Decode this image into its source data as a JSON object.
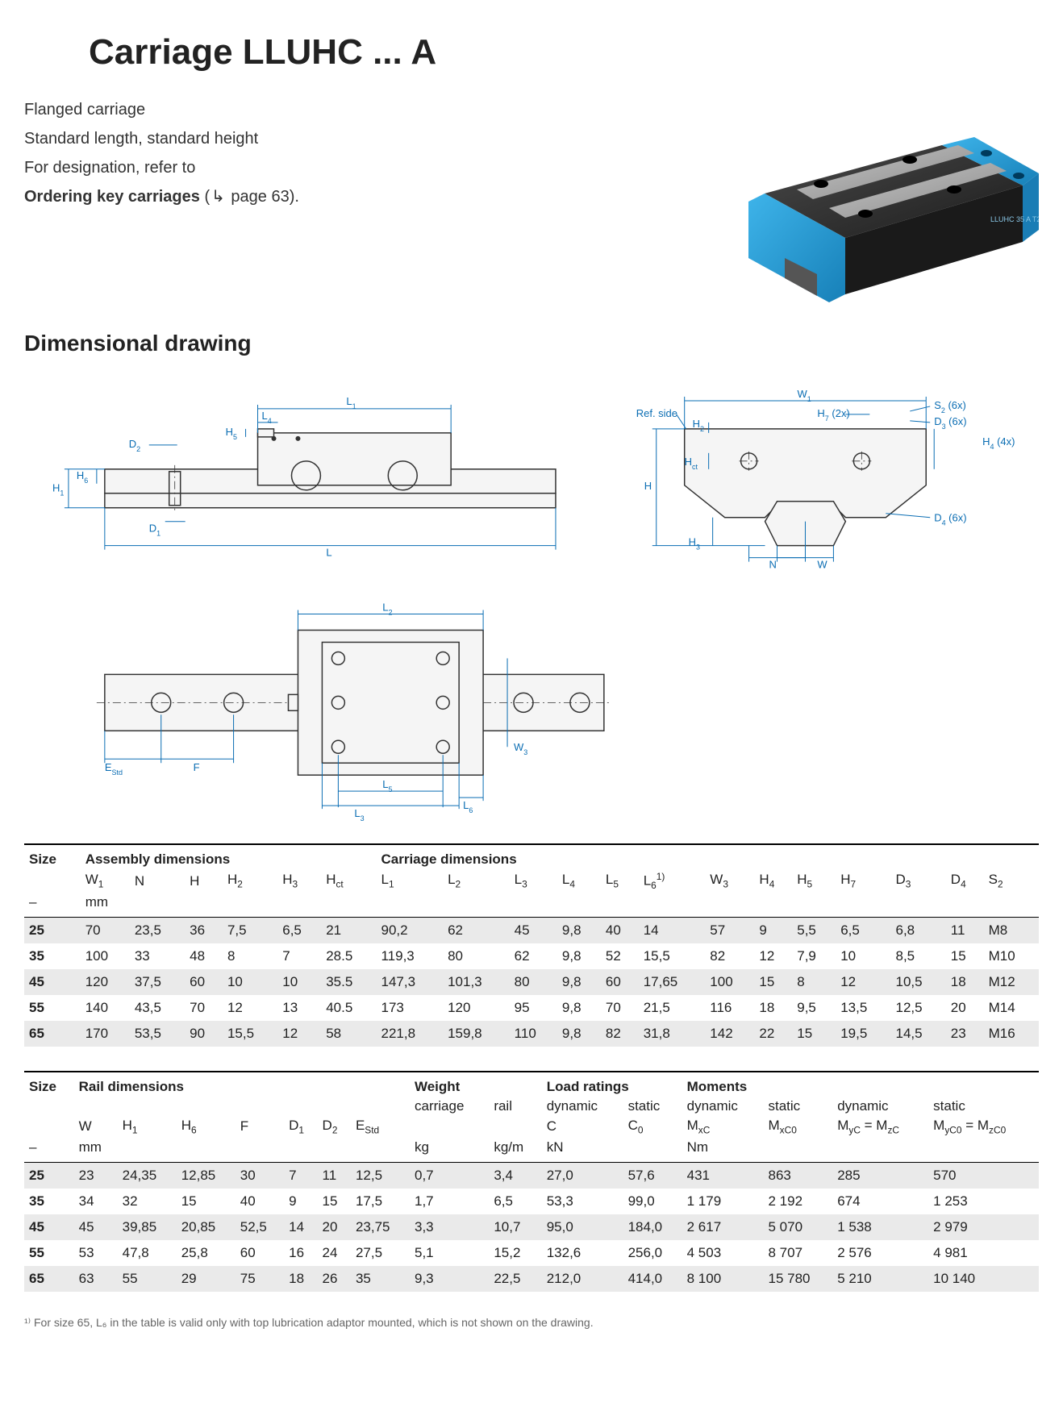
{
  "title": "Carriage LLUHC ... A",
  "intro": {
    "line1": "Flanged carriage",
    "line2": "Standard length, standard height",
    "line3_prefix": "For designation, refer to",
    "line4_bold": "Ordering key carriages",
    "line4_suffix": " page 63)."
  },
  "product_label": "LLUHC 35 A T2",
  "colors": {
    "carriage_blue": "#2a9ed8",
    "carriage_dark": "#2b2b2b",
    "carriage_light": "#9a9a9a",
    "dim_blue": "#0a6db3",
    "line_dark": "#333333",
    "row_grey": "#eaeaea",
    "row_white": "#ffffff"
  },
  "section_drawing": "Dimensional drawing",
  "table1": {
    "size_header": "Size",
    "group_assembly": "Assembly dimensions",
    "group_carriage": "Carriage dimensions",
    "symbols": [
      "W₁",
      "N",
      "H",
      "H₂",
      "H₃",
      "H_ct",
      "L₁",
      "L₂",
      "L₃",
      "L₄",
      "L₅",
      "L₆¹⁾",
      "W₃",
      "H₄",
      "H₅",
      "H₇",
      "D₃",
      "D₄",
      "S₂"
    ],
    "unit_w1": "mm",
    "dash": "–",
    "rows": [
      {
        "size": "25",
        "vals": [
          "70",
          "23,5",
          "36",
          "7,5",
          "6,5",
          "21",
          "90,2",
          "62",
          "45",
          "9,8",
          "40",
          "14",
          "57",
          "9",
          "5,5",
          "6,5",
          "6,8",
          "11",
          "M8"
        ],
        "grey": true
      },
      {
        "size": "35",
        "vals": [
          "100",
          "33",
          "48",
          "8",
          "7",
          "28.5",
          "119,3",
          "80",
          "62",
          "9,8",
          "52",
          "15,5",
          "82",
          "12",
          "7,9",
          "10",
          "8,5",
          "15",
          "M10"
        ],
        "grey": false
      },
      {
        "size": "45",
        "vals": [
          "120",
          "37,5",
          "60",
          "10",
          "10",
          "35.5",
          "147,3",
          "101,3",
          "80",
          "9,8",
          "60",
          "17,65",
          "100",
          "15",
          "8",
          "12",
          "10,5",
          "18",
          "M12"
        ],
        "grey": true
      },
      {
        "size": "55",
        "vals": [
          "140",
          "43,5",
          "70",
          "12",
          "13",
          "40.5",
          "173",
          "120",
          "95",
          "9,8",
          "70",
          "21,5",
          "116",
          "18",
          "9,5",
          "13,5",
          "12,5",
          "20",
          "M14"
        ],
        "grey": false
      },
      {
        "size": "65",
        "vals": [
          "170",
          "53,5",
          "90",
          "15,5",
          "12",
          "58",
          "221,8",
          "159,8",
          "110",
          "9,8",
          "82",
          "31,8",
          "142",
          "22",
          "15",
          "19,5",
          "14,5",
          "23",
          "M16"
        ],
        "grey": true
      }
    ]
  },
  "table2": {
    "size_header": "Size",
    "group_rail": "Rail dimensions",
    "group_weight": "Weight",
    "group_load": "Load ratings",
    "group_moments": "Moments",
    "sub_carriage": "carriage",
    "sub_rail": "rail",
    "sub_dynamic": "dynamic",
    "sub_static": "static",
    "symbols_rail": [
      "W",
      "H₁",
      "H₆",
      "F",
      "D₁",
      "D₂",
      "E_Std"
    ],
    "sym_C": "C",
    "sym_C0": "C₀",
    "sym_MxC": "M_xC",
    "sym_MxC0": "M_xC₀",
    "sym_Myc": "M_yC = M_zC",
    "sym_Myc0": "M_yC₀ = M_zC₀",
    "unit_mm": "mm",
    "unit_kg": "kg",
    "unit_kgm": "kg/m",
    "unit_kN": "kN",
    "unit_Nm": "Nm",
    "dash": "–",
    "rows": [
      {
        "size": "25",
        "vals": [
          "23",
          "24,35",
          "12,85",
          "30",
          "7",
          "11",
          "12,5",
          "0,7",
          "3,4",
          "27,0",
          "57,6",
          "431",
          "863",
          "285",
          "570"
        ],
        "grey": true
      },
      {
        "size": "35",
        "vals": [
          "34",
          "32",
          "15",
          "40",
          "9",
          "15",
          "17,5",
          "1,7",
          "6,5",
          "53,3",
          "99,0",
          "1 179",
          "2 192",
          "674",
          "1 253"
        ],
        "grey": false
      },
      {
        "size": "45",
        "vals": [
          "45",
          "39,85",
          "20,85",
          "52,5",
          "14",
          "20",
          "23,75",
          "3,3",
          "10,7",
          "95,0",
          "184,0",
          "2 617",
          "5 070",
          "1 538",
          "2 979"
        ],
        "grey": true
      },
      {
        "size": "55",
        "vals": [
          "53",
          "47,8",
          "25,8",
          "60",
          "16",
          "24",
          "27,5",
          "5,1",
          "15,2",
          "132,6",
          "256,0",
          "4 503",
          "8 707",
          "2 576",
          "4 981"
        ],
        "grey": false
      },
      {
        "size": "65",
        "vals": [
          "63",
          "55",
          "29",
          "75",
          "18",
          "26",
          "35",
          "9,3",
          "22,5",
          "212,0",
          "414,0",
          "8 100",
          "15 780",
          "5 210",
          "10 140"
        ],
        "grey": true
      }
    ]
  },
  "footnote": "¹⁾ For size 65, L₆ in the table is valid only with top lubrication adaptor mounted, which is not shown on the drawing.",
  "drawing_labels": {
    "L": "L",
    "L1": "L₁",
    "L2": "L₂",
    "L3": "L₃",
    "L4": "L₄",
    "L5": "L₅",
    "L6": "L₆",
    "D1": "D₁",
    "D2": "D₂",
    "D3": "D₃",
    "D4": "D₄",
    "H": "H",
    "H1": "H₁",
    "H2": "H₂",
    "H3": "H₃",
    "H4": "H₄",
    "H5": "H₅",
    "H6": "H₆",
    "H7": "H₇",
    "Hct": "H_ct",
    "W": "W",
    "W1": "W₁",
    "W3": "W₃",
    "N": "N",
    "F": "F",
    "EStd": "E_Std",
    "S2": "S₂ (6x)",
    "D3_6x": "D₃ (6x)",
    "D4_6x": "D₄ (6x)",
    "H4_4x": "H₄ (4x)",
    "H7_2x": "H₇ (2x)",
    "RefSide": "Ref. side"
  }
}
